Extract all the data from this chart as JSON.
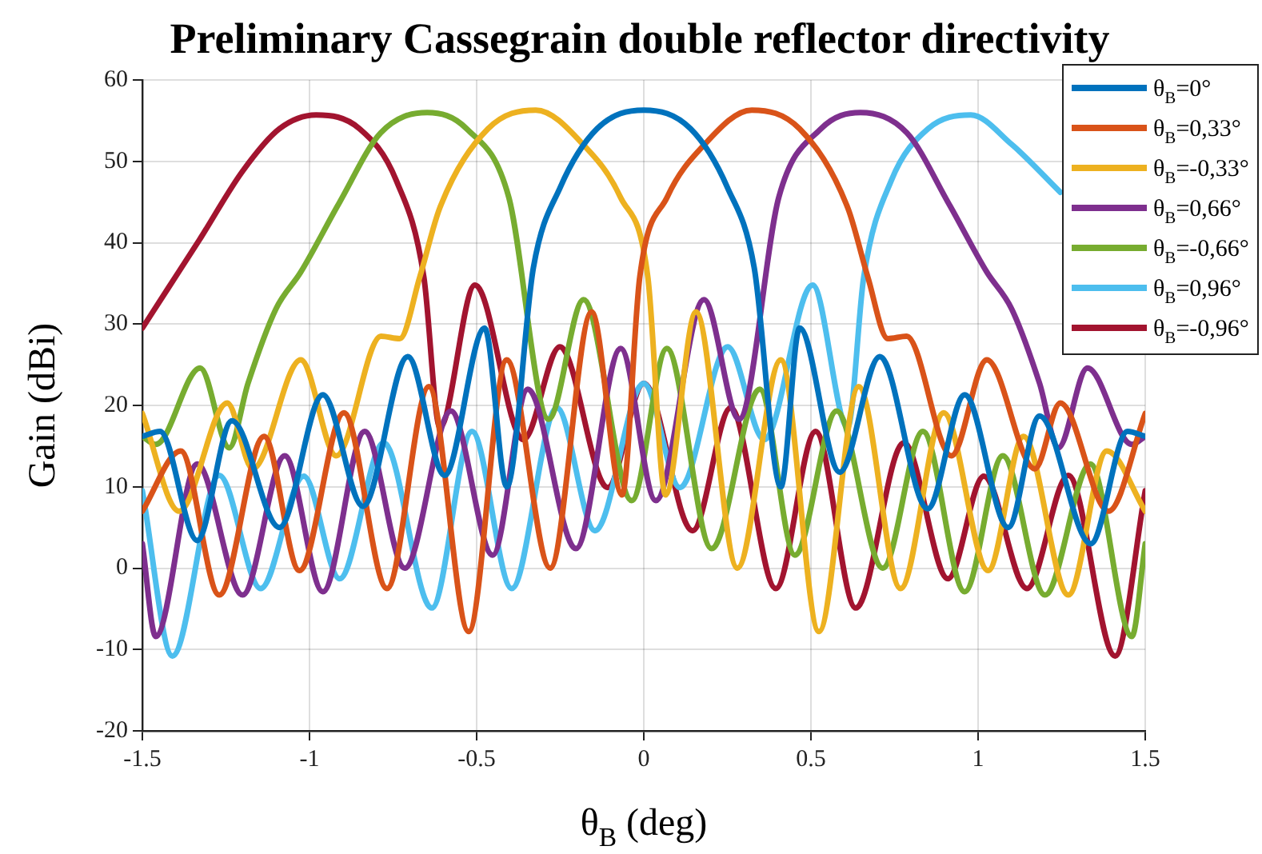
{
  "chart_data": {
    "type": "line",
    "title": "Preliminary Cassegrain double reflector directivity",
    "xlabel": "θ$_{B}$ (deg)",
    "ylabel": "Gain (dBi)",
    "xlim": [
      -1.5,
      1.5
    ],
    "xticks": [
      -1.5,
      -1,
      -0.5,
      0,
      0.5,
      1,
      1.5
    ],
    "ylim": [
      -20,
      60
    ],
    "yticks": [
      -20,
      -10,
      0,
      10,
      20,
      30,
      40,
      50,
      60
    ],
    "grid": true,
    "legend": "top right",
    "series": [
      {
        "name": "θ$_{B}$=0°",
        "color": "#0072bd",
        "x": [
          -1.5,
          -1.447,
          -1.336,
          -1.232,
          -1.09,
          -0.96,
          -0.84,
          -0.706,
          -0.596,
          -0.476,
          -0.41,
          -0.33,
          -0.25,
          -0.14,
          0,
          0.14,
          0.25,
          0.33,
          0.41,
          0.466,
          0.586,
          0.706,
          0.849,
          0.96,
          1.09,
          1.184,
          1.337,
          1.447,
          1.5
        ],
        "values": [
          16.2,
          16.8,
          3.4,
          18.1,
          5,
          21.3,
          7.6,
          26,
          11.4,
          29.5,
          10,
          37,
          46.8,
          54,
          56.3,
          54,
          46.8,
          37,
          10,
          29.5,
          11.8,
          26,
          7.3,
          21.3,
          5,
          18.7,
          3,
          16.8,
          16.2
        ]
      },
      {
        "name": "θ$_{B}$=0,33°",
        "color": "#d95319",
        "x": [
          -1.5,
          -1.385,
          -1.27,
          -1.136,
          -1.03,
          -0.897,
          -0.768,
          -0.643,
          -0.524,
          -0.41,
          -0.28,
          -0.156,
          -0.065,
          -0.012,
          0.07,
          0.18,
          0.323,
          0.466,
          0.61,
          0.67,
          0.73,
          0.786,
          0.92,
          1.026,
          1.17,
          1.246,
          1.39,
          1.5
        ],
        "values": [
          7,
          14.4,
          -3.3,
          16.2,
          -0.3,
          19.1,
          -2.5,
          22.3,
          -7.8,
          25.6,
          0,
          31.5,
          9,
          35.8,
          45.6,
          52,
          56.3,
          54,
          44.3,
          35.8,
          28.2,
          28.5,
          13.8,
          25.6,
          12.2,
          20.3,
          7,
          19
        ]
      },
      {
        "name": "θ$_{B}$=-0,33°",
        "color": "#edb120",
        "x": [
          -1.5,
          -1.39,
          -1.246,
          -1.17,
          -1.026,
          -0.92,
          -0.786,
          -0.73,
          -0.67,
          -0.61,
          -0.466,
          -0.323,
          -0.18,
          -0.07,
          0.012,
          0.065,
          0.156,
          0.28,
          0.41,
          0.524,
          0.643,
          0.768,
          0.897,
          1.03,
          1.136,
          1.27,
          1.385,
          1.5
        ],
        "values": [
          19,
          7,
          20.3,
          12.2,
          25.6,
          13.8,
          28.5,
          28.2,
          35.8,
          44.3,
          54,
          56.3,
          52,
          45.6,
          35.8,
          9,
          31.5,
          0,
          25.6,
          -7.8,
          22.3,
          -2.5,
          19.1,
          -0.3,
          16.2,
          -3.3,
          14.4,
          7
        ]
      },
      {
        "name": "θ$_{B}$=0,66°",
        "color": "#7e2f8e",
        "x": [
          -1.5,
          -1.46,
          -1.336,
          -1.2,
          -1.074,
          -0.96,
          -0.835,
          -0.715,
          -0.577,
          -0.452,
          -0.347,
          -0.203,
          -0.069,
          0.036,
          0.18,
          0.285,
          0.404,
          0.53,
          0.648,
          0.787,
          0.911,
          1.026,
          1.1,
          1.184,
          1.24,
          1.327,
          1.46,
          1.5
        ],
        "values": [
          3,
          -8.4,
          12.8,
          -3.3,
          13.8,
          -2.9,
          16.8,
          0,
          19.3,
          1.6,
          22,
          2.4,
          27,
          8.3,
          33,
          18.3,
          45.6,
          54,
          56,
          53.5,
          44.9,
          36.4,
          31.9,
          22.7,
          14.8,
          24.6,
          15.2,
          16.2
        ]
      },
      {
        "name": "θ$_{B}$=-0,66°",
        "color": "#77ac30",
        "x": [
          -1.5,
          -1.46,
          -1.327,
          -1.24,
          -1.184,
          -1.1,
          -1.026,
          -0.911,
          -0.787,
          -0.648,
          -0.53,
          -0.404,
          -0.285,
          -0.18,
          -0.036,
          0.069,
          0.203,
          0.347,
          0.452,
          0.577,
          0.715,
          0.835,
          0.96,
          1.074,
          1.2,
          1.336,
          1.46,
          1.5
        ],
        "values": [
          16.2,
          15.2,
          24.6,
          14.8,
          22.7,
          31.9,
          36.4,
          44.9,
          53.5,
          56,
          54,
          45.6,
          18.3,
          33,
          8.3,
          27,
          2.4,
          22,
          1.6,
          19.3,
          0,
          16.8,
          -2.9,
          13.8,
          -3.3,
          12.8,
          -8.4,
          3
        ]
      },
      {
        "name": "θ$_{B}$=0,96°",
        "color": "#4dbeee",
        "x": [
          -1.5,
          -1.41,
          -1.27,
          -1.146,
          -1.017,
          -0.91,
          -0.778,
          -0.634,
          -0.514,
          -0.395,
          -0.26,
          -0.146,
          0,
          0.108,
          0.251,
          0.36,
          0.505,
          0.61,
          0.658,
          0.74,
          0.85,
          0.978,
          1.1,
          1.246
        ],
        "values": [
          9.5,
          -10.8,
          11.4,
          -2.5,
          11.3,
          -1.3,
          15.4,
          -4.9,
          16.8,
          -2.5,
          19.7,
          4.6,
          22.7,
          9.9,
          27.2,
          15.8,
          34.8,
          17.3,
          35.8,
          47.6,
          54,
          55.7,
          52.1,
          46.2
        ]
      },
      {
        "name": "θ$_{B}$=-0,96°",
        "color": "#a2142f",
        "x": [
          -1.5,
          -1.423,
          -1.33,
          -1.2,
          -1.09,
          -0.98,
          -0.85,
          -0.74,
          -0.658,
          -0.61,
          -0.505,
          -0.36,
          -0.251,
          -0.108,
          0,
          0.146,
          0.26,
          0.395,
          0.514,
          0.634,
          0.778,
          0.91,
          1.017,
          1.146,
          1.27,
          1.41,
          1.5
        ],
        "values": [
          29.5,
          34.4,
          40.3,
          48.8,
          54,
          55.7,
          54,
          47.6,
          35.8,
          17.3,
          34.8,
          15.8,
          27.2,
          9.9,
          22.7,
          4.6,
          19.7,
          -2.5,
          16.8,
          -4.9,
          15.4,
          -1.3,
          11.3,
          -2.5,
          11.4,
          -10.8,
          9.5
        ]
      }
    ]
  }
}
